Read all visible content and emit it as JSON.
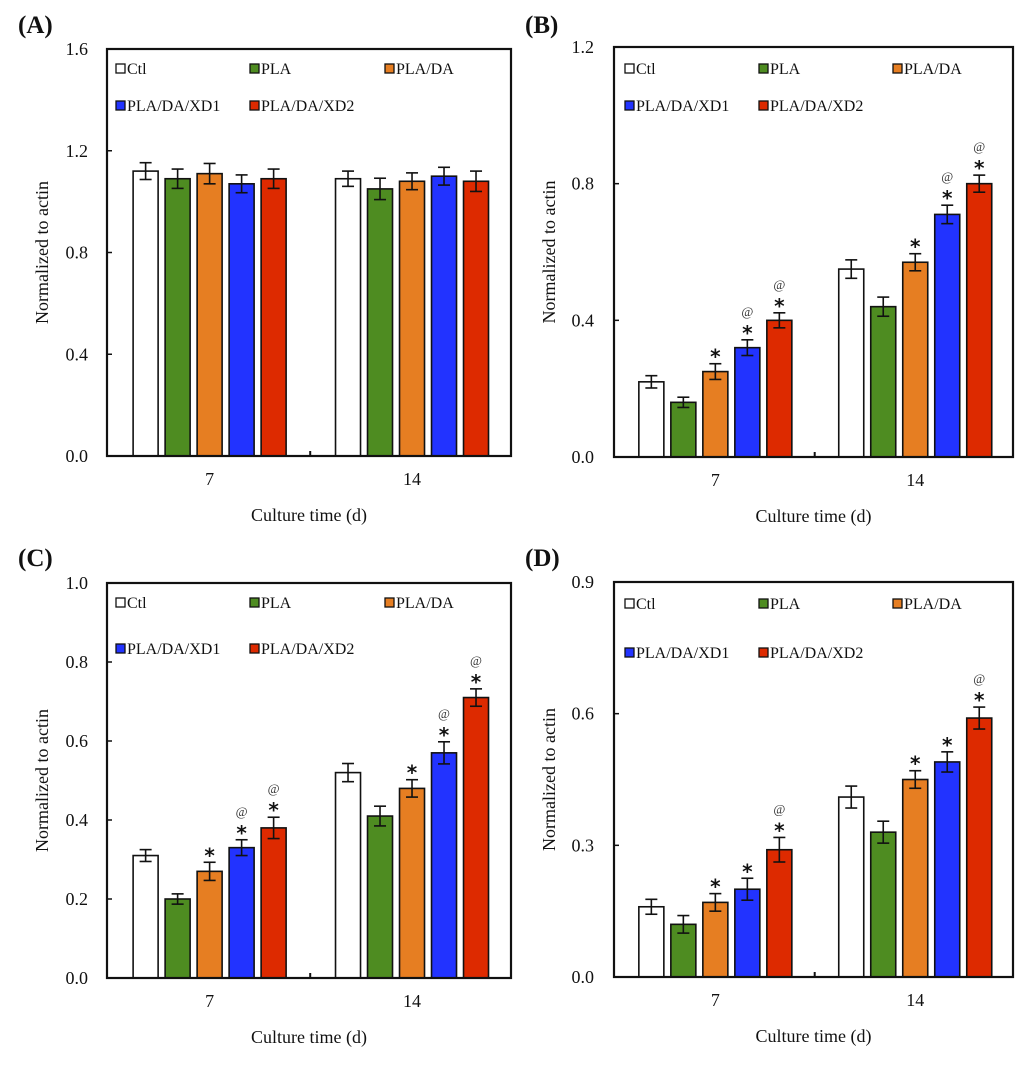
{
  "figure": {
    "groups": [
      "Ctl",
      "PLA",
      "PLA/DA",
      "PLA/DA/XD1",
      "PLA/DA/XD2"
    ],
    "colors": {
      "Ctl": "#ffffff",
      "PLA": "#4e8c21",
      "PLA/DA": "#e67e22",
      "PLA/DA/XD1": "#2233ff",
      "PLA/DA/XD2": "#dd2a00"
    }
  },
  "chart_data": [
    {
      "panel": "(A)",
      "type": "bar",
      "title": "",
      "xlabel": "Culture time (d)",
      "ylabel": "Normalized to actin",
      "categories": [
        "7",
        "14"
      ],
      "ylim": [
        0,
        1.6
      ],
      "yticks": [
        "0.0",
        "0.4",
        "0.8",
        "1.2",
        "1.6"
      ],
      "ytick_values": [
        0,
        0.4,
        0.8,
        1.2,
        1.6
      ],
      "legend": "top-left",
      "series": [
        {
          "name": "Ctl",
          "values": [
            1.12,
            1.09
          ],
          "errors": [
            0.033,
            0.03
          ]
        },
        {
          "name": "PLA",
          "values": [
            1.09,
            1.05
          ],
          "errors": [
            0.038,
            0.042
          ]
        },
        {
          "name": "PLA/DA",
          "values": [
            1.11,
            1.08
          ],
          "errors": [
            0.04,
            0.033
          ]
        },
        {
          "name": "PLA/DA/XD1",
          "values": [
            1.07,
            1.1
          ],
          "errors": [
            0.035,
            0.035
          ]
        },
        {
          "name": "PLA/DA/XD2",
          "values": [
            1.09,
            1.08
          ],
          "errors": [
            0.038,
            0.04
          ]
        }
      ],
      "annotations": []
    },
    {
      "panel": "(B)",
      "type": "bar",
      "title": "",
      "xlabel": "Culture time (d)",
      "ylabel": "Normalized to actin",
      "categories": [
        "7",
        "14"
      ],
      "ylim": [
        0,
        1.2
      ],
      "yticks": [
        "0.0",
        "0.4",
        "0.8",
        "1.2"
      ],
      "ytick_values": [
        0,
        0.4,
        0.8,
        1.2
      ],
      "legend": "top-left",
      "series": [
        {
          "name": "Ctl",
          "values": [
            0.22,
            0.55
          ],
          "errors": [
            0.018,
            0.027
          ]
        },
        {
          "name": "PLA",
          "values": [
            0.16,
            0.44
          ],
          "errors": [
            0.015,
            0.028
          ]
        },
        {
          "name": "PLA/DA",
          "values": [
            0.25,
            0.57
          ],
          "errors": [
            0.023,
            0.025
          ]
        },
        {
          "name": "PLA/DA/XD1",
          "values": [
            0.32,
            0.71
          ],
          "errors": [
            0.023,
            0.027
          ]
        },
        {
          "name": "PLA/DA/XD2",
          "values": [
            0.4,
            0.8
          ],
          "errors": [
            0.022,
            0.025
          ]
        }
      ],
      "annotations": [
        {
          "category": "7",
          "series": "PLA/DA",
          "marks": [
            "*"
          ]
        },
        {
          "category": "7",
          "series": "PLA/DA/XD1",
          "marks": [
            "*",
            "@"
          ]
        },
        {
          "category": "7",
          "series": "PLA/DA/XD2",
          "marks": [
            "*",
            "@"
          ]
        },
        {
          "category": "14",
          "series": "PLA/DA",
          "marks": [
            "*"
          ]
        },
        {
          "category": "14",
          "series": "PLA/DA/XD1",
          "marks": [
            "*",
            "@"
          ]
        },
        {
          "category": "14",
          "series": "PLA/DA/XD2",
          "marks": [
            "*",
            "@"
          ]
        }
      ]
    },
    {
      "panel": "(C)",
      "type": "bar",
      "title": "",
      "xlabel": "Culture time (d)",
      "ylabel": "Normalized to actin",
      "categories": [
        "7",
        "14"
      ],
      "ylim": [
        0,
        1.0
      ],
      "yticks": [
        "0.0",
        "0.2",
        "0.4",
        "0.6",
        "0.8",
        "1.0"
      ],
      "ytick_values": [
        0,
        0.2,
        0.4,
        0.6,
        0.8,
        1.0
      ],
      "legend": "top-left",
      "series": [
        {
          "name": "Ctl",
          "values": [
            0.31,
            0.52
          ],
          "errors": [
            0.015,
            0.023
          ]
        },
        {
          "name": "PLA",
          "values": [
            0.2,
            0.41
          ],
          "errors": [
            0.013,
            0.025
          ]
        },
        {
          "name": "PLA/DA",
          "values": [
            0.27,
            0.48
          ],
          "errors": [
            0.023,
            0.022
          ]
        },
        {
          "name": "PLA/DA/XD1",
          "values": [
            0.33,
            0.57
          ],
          "errors": [
            0.02,
            0.028
          ]
        },
        {
          "name": "PLA/DA/XD2",
          "values": [
            0.38,
            0.71
          ],
          "errors": [
            0.027,
            0.022
          ]
        }
      ],
      "annotations": [
        {
          "category": "7",
          "series": "PLA/DA",
          "marks": [
            "*"
          ]
        },
        {
          "category": "7",
          "series": "PLA/DA/XD1",
          "marks": [
            "*",
            "@"
          ]
        },
        {
          "category": "7",
          "series": "PLA/DA/XD2",
          "marks": [
            "*",
            "@"
          ]
        },
        {
          "category": "14",
          "series": "PLA/DA",
          "marks": [
            "*"
          ]
        },
        {
          "category": "14",
          "series": "PLA/DA/XD1",
          "marks": [
            "*",
            "@"
          ]
        },
        {
          "category": "14",
          "series": "PLA/DA/XD2",
          "marks": [
            "*",
            "@"
          ]
        }
      ]
    },
    {
      "panel": "(D)",
      "type": "bar",
      "title": "",
      "xlabel": "Culture time (d)",
      "ylabel": "Normalized to actin",
      "categories": [
        "7",
        "14"
      ],
      "ylim": [
        0,
        0.9
      ],
      "yticks": [
        "0.0",
        "0.3",
        "0.6",
        "0.9"
      ],
      "ytick_values": [
        0,
        0.3,
        0.6,
        0.9
      ],
      "legend": "top-left",
      "series": [
        {
          "name": "Ctl",
          "values": [
            0.16,
            0.41
          ],
          "errors": [
            0.017,
            0.025
          ]
        },
        {
          "name": "PLA",
          "values": [
            0.12,
            0.33
          ],
          "errors": [
            0.02,
            0.025
          ]
        },
        {
          "name": "PLA/DA",
          "values": [
            0.17,
            0.45
          ],
          "errors": [
            0.02,
            0.02
          ]
        },
        {
          "name": "PLA/DA/XD1",
          "values": [
            0.2,
            0.49
          ],
          "errors": [
            0.025,
            0.023
          ]
        },
        {
          "name": "PLA/DA/XD2",
          "values": [
            0.29,
            0.59
          ],
          "errors": [
            0.028,
            0.025
          ]
        }
      ],
      "annotations": [
        {
          "category": "7",
          "series": "PLA/DA",
          "marks": [
            "*"
          ]
        },
        {
          "category": "7",
          "series": "PLA/DA/XD1",
          "marks": [
            "*"
          ]
        },
        {
          "category": "7",
          "series": "PLA/DA/XD2",
          "marks": [
            "*",
            "@"
          ]
        },
        {
          "category": "14",
          "series": "PLA/DA",
          "marks": [
            "*"
          ]
        },
        {
          "category": "14",
          "series": "PLA/DA/XD1",
          "marks": [
            "*"
          ]
        },
        {
          "category": "14",
          "series": "PLA/DA/XD2",
          "marks": [
            "*",
            "@"
          ]
        }
      ]
    }
  ]
}
